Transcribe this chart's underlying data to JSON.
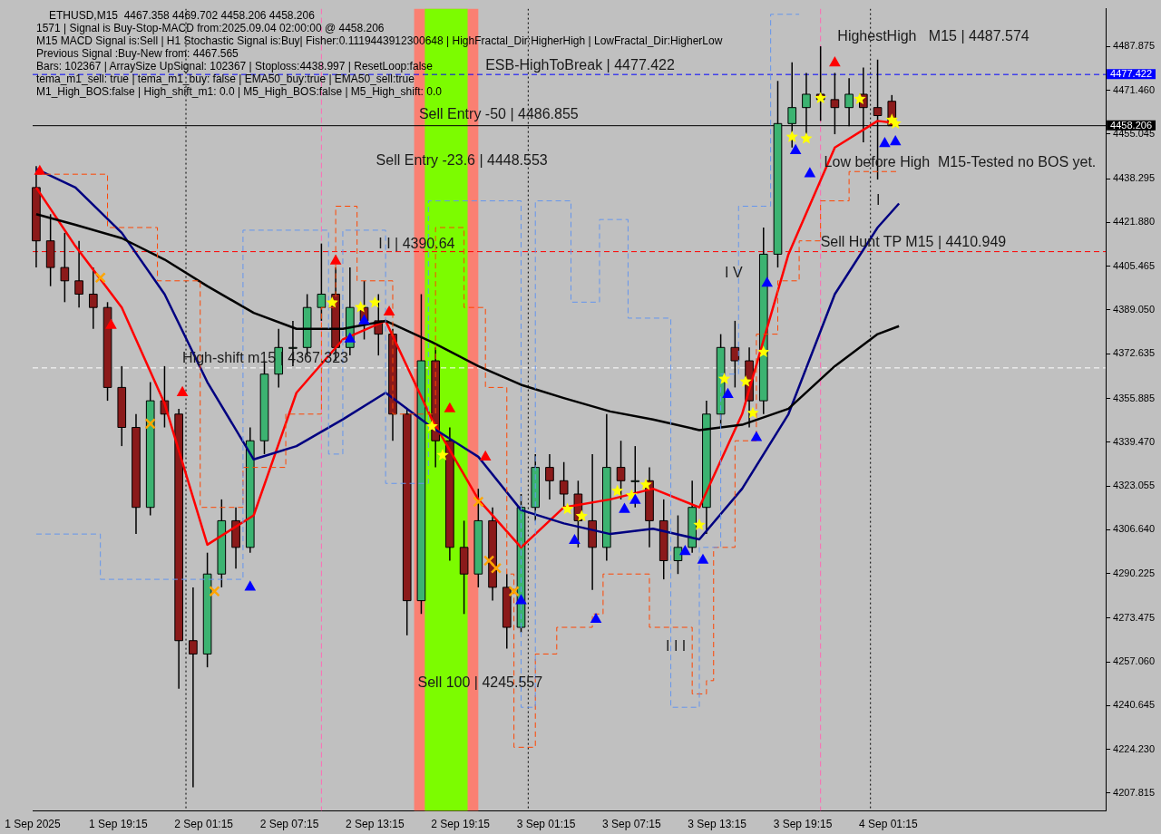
{
  "chart_data": {
    "type": "candlestick",
    "title": "ETHUSD,M15  4467.358 4469.702 4458.206 4458.206",
    "annotations": [
      "1571 | Signal is Buy-Stop-MACD from:2025.09.04 02:00:00 @ 4458.206",
      "M15 MACD Signal is:Sell | H1 Stochastic Signal is:Buy| Fisher:0.1119443912300648 | HighFractal_Dir:HigherHigh | LowFractal_Dir:HigherLow",
      "Previous Signal :Buy-New from: 4467.565",
      "Bars: 102367 | ArraySize UpSignal: 102367 | Stoploss:4438.997 | ResetLoop:false",
      "tema_m1_sell: true | tema_m1_buy: false | EMA50_buy:true | EMA50_sell:true",
      "M1_High_BOS:false | High_shift_m1: 0.0 | M5_High_BOS:false | M5_High_shift: 0.0",
      {
        "text": "ESB-HighToBreak | 4477.422",
        "x": "2025-09-02T21:00",
        "y": 4477.422
      },
      {
        "text": "I I | 4390.64",
        "x": "2025-09-02T13:30",
        "y": 4410.3
      },
      {
        "text": "High-shift m15 | 4367.323",
        "x": "2025-09-01T23:45",
        "y": 4367.323
      },
      {
        "text": "Sell 100 | 4245.557",
        "x": "2025-09-02T16:15",
        "y": 4245.557
      },
      {
        "text": "Low before High  M15-Tested no BOS yet.",
        "x": "2025-09-03T20:45",
        "y": 4441
      },
      {
        "text": "Sell Hunt TP M15 | 4410.949",
        "x": "2025-09-03T20:30",
        "y": 4410.949
      },
      "Sell Entry -50 | 4486.855",
      "Sell Entry -23.6 | 4448.553",
      "HighestHigh   M15 | 4487.574",
      "I V",
      "I I I",
      "I"
    ],
    "x": [
      "2025-09-01T13:30",
      "2025-09-01T14:30",
      "2025-09-01T15:30",
      "2025-09-01T16:30",
      "2025-09-01T17:30",
      "2025-09-01T18:30",
      "2025-09-01T19:30",
      "2025-09-01T20:30",
      "2025-09-01T21:30",
      "2025-09-01T22:30",
      "2025-09-01T23:30",
      "2025-09-02T00:30",
      "2025-09-02T01:30",
      "2025-09-02T02:30",
      "2025-09-02T03:30",
      "2025-09-02T04:30",
      "2025-09-02T05:30",
      "2025-09-02T06:30",
      "2025-09-02T07:30",
      "2025-09-02T08:30",
      "2025-09-02T09:30",
      "2025-09-02T10:30",
      "2025-09-02T11:30",
      "2025-09-02T12:30",
      "2025-09-02T13:30",
      "2025-09-02T14:30",
      "2025-09-02T15:30",
      "2025-09-02T16:30",
      "2025-09-02T17:30",
      "2025-09-02T18:30",
      "2025-09-02T19:30",
      "2025-09-02T20:30",
      "2025-09-02T21:30",
      "2025-09-02T22:30",
      "2025-09-02T23:30",
      "2025-09-03T00:30",
      "2025-09-03T01:30",
      "2025-09-03T02:30",
      "2025-09-03T03:30",
      "2025-09-03T04:30",
      "2025-09-03T05:30",
      "2025-09-03T06:30",
      "2025-09-03T07:30",
      "2025-09-03T08:30",
      "2025-09-03T09:30",
      "2025-09-03T10:30",
      "2025-09-03T11:30",
      "2025-09-03T12:30",
      "2025-09-03T13:30",
      "2025-09-03T14:30",
      "2025-09-03T15:30",
      "2025-09-03T16:30",
      "2025-09-03T17:30",
      "2025-09-03T18:30",
      "2025-09-03T19:30",
      "2025-09-03T20:30",
      "2025-09-03T21:30",
      "2025-09-03T22:30",
      "2025-09-03T23:30",
      "2025-09-04T00:30",
      "2025-09-04T01:30"
    ],
    "ohlc": [
      [
        4435,
        4443,
        4405,
        4415
      ],
      [
        4415,
        4425,
        4398,
        4405
      ],
      [
        4405,
        4418,
        4392,
        4400
      ],
      [
        4400,
        4415,
        4390,
        4395
      ],
      [
        4395,
        4405,
        4382,
        4390
      ],
      [
        4390,
        4392,
        4355,
        4360
      ],
      [
        4360,
        4368,
        4338,
        4345
      ],
      [
        4345,
        4350,
        4305,
        4315
      ],
      [
        4315,
        4362,
        4312,
        4355
      ],
      [
        4355,
        4368,
        4345,
        4350
      ],
      [
        4350,
        4352,
        4247,
        4265
      ],
      [
        4265,
        4285,
        4210,
        4260
      ],
      [
        4260,
        4298,
        4255,
        4290
      ],
      [
        4290,
        4318,
        4285,
        4310
      ],
      [
        4310,
        4315,
        4292,
        4300
      ],
      [
        4300,
        4345,
        4298,
        4340
      ],
      [
        4340,
        4370,
        4335,
        4365
      ],
      [
        4365,
        4382,
        4360,
        4375
      ],
      [
        4375,
        4385,
        4368,
        4375
      ],
      [
        4375,
        4395,
        4372,
        4390
      ],
      [
        4390,
        4414,
        4385,
        4395
      ],
      [
        4395,
        4405,
        4370,
        4375
      ],
      [
        4375,
        4405,
        4372,
        4390
      ],
      [
        4390,
        4400,
        4378,
        4385
      ],
      [
        4385,
        4395,
        4372,
        4380
      ],
      [
        4380,
        4382,
        4340,
        4350
      ],
      [
        4350,
        4352,
        4267,
        4280
      ],
      [
        4280,
        4395,
        4275,
        4370
      ],
      [
        4370,
        4375,
        4330,
        4340
      ],
      [
        4340,
        4345,
        4295,
        4300
      ],
      [
        4300,
        4310,
        4275,
        4290
      ],
      [
        4290,
        4322,
        4285,
        4310
      ],
      [
        4310,
        4315,
        4280,
        4285
      ],
      [
        4285,
        4290,
        4262,
        4270
      ],
      [
        4270,
        4320,
        4268,
        4315
      ],
      [
        4315,
        4335,
        4310,
        4330
      ],
      [
        4330,
        4335,
        4318,
        4325
      ],
      [
        4325,
        4332,
        4315,
        4320
      ],
      [
        4320,
        4325,
        4300,
        4310
      ],
      [
        4310,
        4335,
        4284,
        4300
      ],
      [
        4300,
        4350,
        4295,
        4330
      ],
      [
        4330,
        4340,
        4318,
        4325
      ],
      [
        4325,
        4338,
        4315,
        4325
      ],
      [
        4325,
        4330,
        4300,
        4310
      ],
      [
        4310,
        4318,
        4288,
        4295
      ],
      [
        4295,
        4312,
        4290,
        4300
      ],
      [
        4300,
        4325,
        4298,
        4315
      ],
      [
        4315,
        4355,
        4305,
        4350
      ],
      [
        4350,
        4380,
        4345,
        4375
      ],
      [
        4375,
        4385,
        4360,
        4370
      ],
      [
        4370,
        4375,
        4345,
        4355
      ],
      [
        4355,
        4420,
        4350,
        4410
      ],
      [
        4410,
        4475,
        4405,
        4459
      ],
      [
        4459,
        4482,
        4450,
        4465
      ],
      [
        4465,
        4478,
        4455,
        4470
      ],
      [
        4470,
        4488,
        4460,
        4468
      ],
      [
        4468,
        4478,
        4455,
        4465
      ],
      [
        4465,
        4476,
        4458,
        4470
      ],
      [
        4470,
        4480,
        4452,
        4465
      ],
      [
        4465,
        4483,
        4438,
        4462
      ],
      [
        4467.358,
        4469.702,
        4458.206,
        4458.206
      ]
    ],
    "colors": [
      "#8b1a1a",
      "#8b1a1a",
      "#8b1a1a",
      "#8b1a1a",
      "#8b1a1a",
      "#8b1a1a",
      "#8b1a1a",
      "#8b1a1a",
      "#3cb371",
      "#8b1a1a",
      "#8b1a1a",
      "#8b1a1a",
      "#3cb371",
      "#3cb371",
      "#8b1a1a",
      "#3cb371",
      "#3cb371",
      "#3cb371",
      "#3cb371",
      "#3cb371",
      "#3cb371",
      "#8b1a1a",
      "#3cb371",
      "#8b1a1a",
      "#8b1a1a",
      "#8b1a1a",
      "#8b1a1a",
      "#3cb371",
      "#8b1a1a",
      "#8b1a1a",
      "#8b1a1a",
      "#3cb371",
      "#8b1a1a",
      "#8b1a1a",
      "#3cb371",
      "#3cb371",
      "#8b1a1a",
      "#8b1a1a",
      "#8b1a1a",
      "#8b1a1a",
      "#3cb371",
      "#8b1a1a",
      "#3cb371",
      "#8b1a1a",
      "#8b1a1a",
      "#3cb371",
      "#3cb371",
      "#3cb371",
      "#3cb371",
      "#8b1a1a",
      "#8b1a1a",
      "#3cb371",
      "#3cb371",
      "#3cb371",
      "#3cb371",
      "#8b1a1a",
      "#8b1a1a",
      "#3cb371",
      "#8b1a1a",
      "#8b1a1a",
      "#8b1a1a"
    ],
    "series": [
      {
        "type": "step",
        "color": "#6495ed",
        "line_style": "dashed",
        "x": [
          "2025-09-01T13:30",
          "2025-09-01T18:00",
          "2025-09-01T23:00",
          "2025-09-02T04:00",
          "2025-09-02T09:30",
          "2025-09-02T10:00",
          "2025-09-02T11:00",
          "2025-09-02T14:00",
          "2025-09-02T16:45",
          "2025-09-02T17:00",
          "2025-09-02T21:30",
          "2025-09-02T23:30",
          "2025-09-03T00:30",
          "2025-09-03T02:30",
          "2025-09-03T03:00",
          "2025-09-03T05:00",
          "2025-09-03T07:00",
          "2025-09-03T09:30",
          "2025-09-03T10:00",
          "2025-09-03T11:00",
          "2025-09-03T12:00",
          "2025-09-03T13:30",
          "2025-09-03T14:45",
          "2025-09-03T16:30",
          "2025-09-03T17:00",
          "2025-09-03T19:00"
        ],
        "values": [
          4305,
          4288,
          4288,
          4419,
          4419,
          4335,
          4419,
          4324,
          4324,
          4430,
          4430,
          4240,
          4430,
          4430,
          4392,
          4423,
          4386,
          4386,
          4240,
          4240,
          4300,
          4365,
          4428,
          4428,
          4500,
          4500
        ]
      },
      {
        "type": "step",
        "color": "#ff4500",
        "line_style": "dashed",
        "x": [
          "2025-09-01T13:30",
          "2025-09-01T17:00",
          "2025-09-01T18:30",
          "2025-09-01T22:00",
          "2025-09-02T00:00",
          "2025-09-02T01:00",
          "2025-09-02T04:00",
          "2025-09-02T07:00",
          "2025-09-02T09:30",
          "2025-09-02T10:30",
          "2025-09-02T12:00",
          "2025-09-02T14:30",
          "2025-09-02T16:30",
          "2025-09-02T17:30",
          "2025-09-02T19:30",
          "2025-09-02T21:00",
          "2025-09-02T22:30",
          "2025-09-02T23:00",
          "2025-09-03T00:30",
          "2025-09-03T02:00",
          "2025-09-03T04:30",
          "2025-09-03T05:15",
          "2025-09-03T08:00",
          "2025-09-03T08:30",
          "2025-09-03T10:30",
          "2025-09-03T11:30",
          "2025-09-03T12:30",
          "2025-09-03T13:00",
          "2025-09-03T14:30",
          "2025-09-03T16:00",
          "2025-09-03T17:30",
          "2025-09-03T19:00",
          "2025-09-03T20:30",
          "2025-09-03T22:30",
          "2025-09-04T02:00"
        ],
        "values": [
          4440,
          4440,
          4420,
          4400,
          4400,
          4315,
          4330,
          4350,
          4390,
          4428,
          4400,
          4350,
          4350,
          4420,
          4390,
          4360,
          4290,
          4225,
          4260,
          4270,
          4275,
          4290,
          4290,
          4270,
          4270,
          4245,
          4250,
          4300,
          4340,
          4380,
          4400,
          4415,
          4430,
          4441,
          4441
        ]
      },
      {
        "type": "line",
        "color": "#000000",
        "x": [
          "2025-09-01T13:30",
          "2025-09-01T16:15",
          "2025-09-01T19:30",
          "2025-09-01T22:30",
          "2025-09-02T01:30",
          "2025-09-02T04:45",
          "2025-09-02T07:45",
          "2025-09-02T11:00",
          "2025-09-02T14:00",
          "2025-09-02T17:15",
          "2025-09-02T20:30",
          "2025-09-02T23:30",
          "2025-09-03T02:30",
          "2025-09-03T05:45",
          "2025-09-03T08:45",
          "2025-09-03T12:00",
          "2025-09-03T15:00",
          "2025-09-03T18:15",
          "2025-09-03T21:30",
          "2025-09-04T00:30",
          "2025-09-04T02:00"
        ],
        "values": [
          4425,
          4421,
          4416,
          4408,
          4398,
          4388,
          4382,
          4382,
          4385,
          4377,
          4368,
          4361,
          4356,
          4351,
          4348,
          4344,
          4346,
          4352,
          4368,
          4380,
          4383
        ]
      },
      {
        "type": "line",
        "color": "#000080",
        "x": [
          "2025-09-01T13:30",
          "2025-09-01T16:15",
          "2025-09-01T19:30",
          "2025-09-01T22:30",
          "2025-09-02T01:30",
          "2025-09-02T04:45",
          "2025-09-02T07:45",
          "2025-09-02T11:00",
          "2025-09-02T14:00",
          "2025-09-02T17:15",
          "2025-09-02T20:30",
          "2025-09-02T23:30",
          "2025-09-03T02:30",
          "2025-09-03T05:45",
          "2025-09-03T08:45",
          "2025-09-03T12:00",
          "2025-09-03T15:00",
          "2025-09-03T18:15",
          "2025-09-03T21:30",
          "2025-09-04T00:30",
          "2025-09-04T02:00"
        ],
        "values": [
          4442,
          4435,
          4418,
          4395,
          4362,
          4333,
          4338,
          4348,
          4358,
          4345,
          4334,
          4314,
          4309,
          4305,
          4307,
          4303,
          4322,
          4350,
          4395,
          4420,
          4429
        ]
      },
      {
        "type": "line",
        "color": "#ff0000",
        "x": [
          "2025-09-01T13:30",
          "2025-09-01T16:15",
          "2025-09-01T19:30",
          "2025-09-01T22:30",
          "2025-09-02T01:30",
          "2025-09-02T04:45",
          "2025-09-02T07:45",
          "2025-09-02T11:00",
          "2025-09-02T14:00",
          "2025-09-02T17:15",
          "2025-09-02T20:30",
          "2025-09-02T23:30",
          "2025-09-03T02:30",
          "2025-09-03T05:45",
          "2025-09-03T08:45",
          "2025-09-03T12:00",
          "2025-09-03T15:00",
          "2025-09-03T18:15",
          "2025-09-03T21:30",
          "2025-09-04T00:30",
          "2025-09-04T02:00"
        ],
        "values": [
          4435,
          4413,
          4390,
          4354,
          4301,
          4312,
          4358,
          4378,
          4385,
          4348,
          4318,
          4300,
          4315,
          4318,
          4322,
          4315,
          4350,
          4410,
          4450,
          4460,
          4459
        ]
      },
      {
        "type": "scatter",
        "color": "#ffff00",
        "marker": "star",
        "x": [
          "2025-09-02T10:15",
          "2025-09-02T12:15",
          "2025-09-02T13:15",
          "2025-09-02T17:15",
          "2025-09-02T18:00",
          "2025-09-03T02:45",
          "2025-09-03T03:45",
          "2025-09-03T06:15",
          "2025-09-03T07:15",
          "2025-09-03T08:15",
          "2025-09-03T12:00",
          "2025-09-03T13:45",
          "2025-09-03T15:15",
          "2025-09-03T15:45",
          "2025-09-03T16:30",
          "2025-09-03T18:30",
          "2025-09-03T19:30",
          "2025-09-03T20:30",
          "2025-09-03T23:15",
          "2025-09-04T01:30",
          "2025-09-04T01:45"
        ],
        "values": [
          4391.8,
          4390.1,
          4391.8,
          4345.4,
          4334.6,
          4314.4,
          4311.7,
          4321.2,
          4319.5,
          4323.5,
          4308.4,
          4363.2,
          4362.2,
          4350.4,
          4373.3,
          4454.0,
          4453.4,
          4468.5,
          4468.2,
          4460.4,
          4459.0
        ]
      },
      {
        "type": "scatter",
        "color": "#0000ff",
        "marker": "triangle",
        "x": [
          "2025-09-02T04:30",
          "2025-09-02T11:30",
          "2025-09-02T12:30",
          "2025-09-02T23:30",
          "2025-09-03T03:15",
          "2025-09-03T04:45",
          "2025-09-03T06:45",
          "2025-09-03T07:30",
          "2025-09-03T11:00",
          "2025-09-03T12:15",
          "2025-09-03T14:00",
          "2025-09-03T16:00",
          "2025-09-03T16:45",
          "2025-09-03T18:45",
          "2025-09-03T19:45",
          "2025-09-04T01:00",
          "2025-09-04T01:45"
        ],
        "values": [
          4285.2,
          4378.3,
          4385.1,
          4280.1,
          4302.7,
          4273.1,
          4314.4,
          4317.8,
          4298.6,
          4295.3,
          4357.5,
          4341.3,
          4399.2,
          4449.0,
          4440.3,
          4451.6,
          4452.3
        ]
      },
      {
        "type": "scatter",
        "color": "#ff0000",
        "marker": "triangle",
        "x": [
          "2025-09-01T13:45",
          "2025-09-01T18:45",
          "2025-09-01T23:45",
          "2025-09-02T10:30",
          "2025-09-02T14:15",
          "2025-09-02T18:30",
          "2025-09-02T21:00",
          "2025-09-03T21:30"
        ],
        "values": [
          4441.2,
          4383.4,
          4358.2,
          4407.6,
          4388.4,
          4352.1,
          4334.0,
          4481.9
        ]
      },
      {
        "type": "scatter",
        "color": "#ffa500",
        "marker": "cross",
        "x": [
          "2025-09-01T18:00",
          "2025-09-01T21:30",
          "2025-09-02T02:00",
          "2025-09-02T20:30",
          "2025-09-02T21:15",
          "2025-09-02T21:45",
          "2025-09-02T23:00"
        ],
        "values": [
          4401.2,
          4346.4,
          4283.5,
          4317.1,
          4295.0,
          4292.2,
          4283.5
        ]
      }
    ],
    "xlim": [
      "2025-09-01T13:15",
      "2025-09-04T16:30"
    ],
    "xticks": [
      {
        "value": "2025-09-01T13:15",
        "label": "1 Sep 2025"
      },
      {
        "value": "2025-09-01T19:15",
        "label": "1 Sep 19:15"
      },
      {
        "value": "2025-09-02T01:15",
        "label": "2 Sep 01:15"
      },
      {
        "value": "2025-09-02T07:15",
        "label": "2 Sep 07:15"
      },
      {
        "value": "2025-09-02T13:15",
        "label": "2 Sep 13:15"
      },
      {
        "value": "2025-09-02T19:15",
        "label": "2 Sep 19:15"
      },
      {
        "value": "2025-09-03T01:15",
        "label": "3 Sep 01:15"
      },
      {
        "value": "2025-09-03T07:15",
        "label": "3 Sep 07:15"
      },
      {
        "value": "2025-09-03T13:15",
        "label": "3 Sep 13:15"
      },
      {
        "value": "2025-09-03T19:15",
        "label": "3 Sep 19:15"
      },
      {
        "value": "2025-09-04T01:15",
        "label": "4 Sep 01:15"
      }
    ],
    "ylim": [
      4201.1,
      4502.1
    ],
    "yticks": [
      4207.815,
      {
        "value": 4224.23,
        "label": "4224.230"
      },
      4240.645,
      {
        "value": 4257.06,
        "label": "4257.060"
      },
      4273.475,
      4290.225,
      {
        "value": 4306.64,
        "label": "4306.640"
      },
      4323.055,
      {
        "value": 4339.47,
        "label": "4339.470"
      },
      4355.885,
      4372.635,
      {
        "value": 4389.05,
        "label": "4389.050"
      },
      4405.465,
      {
        "value": 4421.88,
        "label": "4421.880"
      },
      4438.295,
      4455.045,
      {
        "value": 4471.46,
        "label": "4471.460"
      },
      4487.875
    ],
    "ref_lines": [
      {
        "axis": "y",
        "value": 4477.422,
        "label": "4477.422",
        "color": "#0000ff",
        "line_style": "dashed"
      },
      {
        "axis": "y",
        "value": 4458.206,
        "label": "4458.206",
        "color": "#000000",
        "line_style": "solid"
      },
      {
        "axis": "y",
        "value": 4410.949,
        "color": "#ff0000",
        "line_style": "dashed"
      },
      {
        "axis": "y",
        "value": 4367.323,
        "color": "#ffffff",
        "line_style": "dashed"
      },
      {
        "axis": "x",
        "value": "2025-09-02T00:00",
        "color": "#000000",
        "line_style": "dotted"
      },
      {
        "axis": "x",
        "value": "2025-09-03T00:00",
        "color": "#000000",
        "line_style": "dotted"
      },
      {
        "axis": "x",
        "value": "2025-09-04T00:00",
        "color": "#000000",
        "line_style": "dotted"
      },
      {
        "axis": "x",
        "value": "2025-09-02T09:30",
        "color": "#ff69b4",
        "line_style": "dashed"
      },
      {
        "axis": "x",
        "value": "2025-09-03T20:30",
        "color": "#ff69b4",
        "line_style": "dashed"
      }
    ],
    "bands": [
      {
        "axis": "x",
        "from": "2025-09-02T16:00",
        "to": "2025-09-02T20:30",
        "color": "#fa8072"
      },
      {
        "axis": "x",
        "from": "2025-09-02T16:45",
        "to": "2025-09-02T19:45",
        "color": "#7cfc00"
      }
    ],
    "grid": false,
    "legend": false
  }
}
